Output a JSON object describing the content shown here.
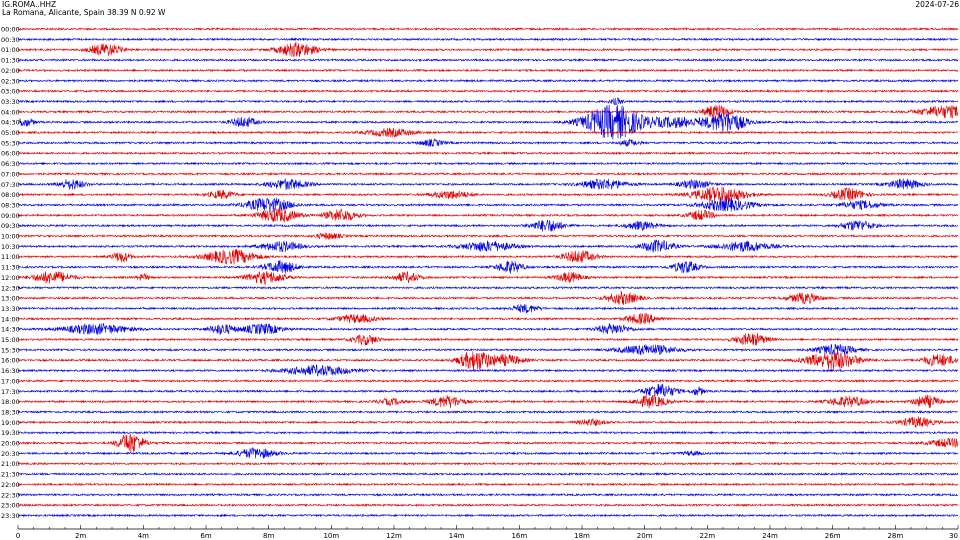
{
  "header": {
    "station": "IG.ROMA..HHZ",
    "location": "La Romana, Alicante, Spain  38.39 N 0.92 W",
    "date": "2024-07-26"
  },
  "chart_data": {
    "type": "line",
    "title": "",
    "xlabel": "",
    "ylabel": "",
    "x_unit": "minutes",
    "xlim": [
      0,
      30
    ],
    "x_ticks": [
      0,
      2,
      4,
      6,
      8,
      10,
      12,
      14,
      16,
      18,
      20,
      22,
      24,
      26,
      28,
      30
    ],
    "x_tick_labels": [
      "0",
      "2m",
      "4m",
      "6m",
      "8m",
      "10m",
      "12m",
      "14m",
      "16m",
      "18m",
      "20m",
      "22m",
      "24m",
      "26m",
      "28m",
      "30"
    ],
    "row_labels": [
      "00:00",
      "00:30",
      "01:00",
      "01:30",
      "02:00",
      "02:30",
      "03:00",
      "03:30",
      "04:00",
      "04:30",
      "05:00",
      "05:30",
      "06:00",
      "06:30",
      "07:00",
      "07:30",
      "08:00",
      "08:30",
      "09:00",
      "09:30",
      "10:00",
      "10:30",
      "11:00",
      "11:30",
      "12:00",
      "12:30",
      "13:00",
      "13:30",
      "14:00",
      "14:30",
      "15:00",
      "15:30",
      "16:00",
      "16:30",
      "17:00",
      "17:30",
      "18:00",
      "18:30",
      "19:00",
      "19:30",
      "20:00",
      "20:30",
      "21:00",
      "21:30",
      "22:00",
      "22:30",
      "23:00",
      "23:30"
    ],
    "trace_colors": [
      "#e00000",
      "#0000e0"
    ],
    "grid": false,
    "bursts": [
      {
        "row": 2,
        "t": 2.8,
        "amp": 6,
        "dur": 0.5
      },
      {
        "row": 2,
        "t": 8.9,
        "amp": 7,
        "dur": 0.6
      },
      {
        "row": 7,
        "t": 19.1,
        "amp": 3,
        "dur": 0.2
      },
      {
        "row": 8,
        "t": 22.3,
        "amp": 7,
        "dur": 0.4
      },
      {
        "row": 8,
        "t": 29.6,
        "amp": 6,
        "dur": 0.8
      },
      {
        "row": 9,
        "t": 0.2,
        "amp": 4,
        "dur": 0.3
      },
      {
        "row": 9,
        "t": 7.2,
        "amp": 5,
        "dur": 0.4
      },
      {
        "row": 9,
        "t": 19.0,
        "amp": 17,
        "dur": 0.9
      },
      {
        "row": 9,
        "t": 21.0,
        "amp": 5,
        "dur": 0.8
      },
      {
        "row": 9,
        "t": 22.6,
        "amp": 11,
        "dur": 0.6
      },
      {
        "row": 10,
        "t": 11.9,
        "amp": 4,
        "dur": 0.7
      },
      {
        "row": 11,
        "t": 13.2,
        "amp": 3,
        "dur": 0.4
      },
      {
        "row": 11,
        "t": 19.5,
        "amp": 3,
        "dur": 0.3
      },
      {
        "row": 15,
        "t": 1.7,
        "amp": 5,
        "dur": 0.4
      },
      {
        "row": 15,
        "t": 8.6,
        "amp": 5,
        "dur": 0.6
      },
      {
        "row": 15,
        "t": 18.7,
        "amp": 5,
        "dur": 0.7
      },
      {
        "row": 15,
        "t": 21.6,
        "amp": 4,
        "dur": 0.5
      },
      {
        "row": 15,
        "t": 28.3,
        "amp": 5,
        "dur": 0.5
      },
      {
        "row": 16,
        "t": 6.5,
        "amp": 4,
        "dur": 0.4
      },
      {
        "row": 16,
        "t": 13.8,
        "amp": 4,
        "dur": 0.6
      },
      {
        "row": 16,
        "t": 22.4,
        "amp": 8,
        "dur": 0.8
      },
      {
        "row": 16,
        "t": 26.5,
        "amp": 6,
        "dur": 0.5
      },
      {
        "row": 17,
        "t": 8.0,
        "amp": 7,
        "dur": 0.7
      },
      {
        "row": 17,
        "t": 22.6,
        "amp": 6,
        "dur": 0.8
      },
      {
        "row": 17,
        "t": 26.9,
        "amp": 4,
        "dur": 0.6
      },
      {
        "row": 18,
        "t": 8.3,
        "amp": 7,
        "dur": 0.6
      },
      {
        "row": 18,
        "t": 10.3,
        "amp": 6,
        "dur": 0.5
      },
      {
        "row": 18,
        "t": 21.8,
        "amp": 5,
        "dur": 0.4
      },
      {
        "row": 19,
        "t": 16.9,
        "amp": 6,
        "dur": 0.5
      },
      {
        "row": 19,
        "t": 19.9,
        "amp": 4,
        "dur": 0.5
      },
      {
        "row": 19,
        "t": 26.8,
        "amp": 5,
        "dur": 0.5
      },
      {
        "row": 20,
        "t": 9.9,
        "amp": 3,
        "dur": 0.4
      },
      {
        "row": 21,
        "t": 8.4,
        "amp": 5,
        "dur": 0.6
      },
      {
        "row": 21,
        "t": 15.0,
        "amp": 5,
        "dur": 0.8
      },
      {
        "row": 21,
        "t": 20.4,
        "amp": 6,
        "dur": 0.5
      },
      {
        "row": 21,
        "t": 23.2,
        "amp": 5,
        "dur": 0.8
      },
      {
        "row": 22,
        "t": 3.3,
        "amp": 5,
        "dur": 0.3
      },
      {
        "row": 22,
        "t": 6.8,
        "amp": 7,
        "dur": 0.8
      },
      {
        "row": 22,
        "t": 17.9,
        "amp": 6,
        "dur": 0.5
      },
      {
        "row": 23,
        "t": 8.4,
        "amp": 6,
        "dur": 0.5
      },
      {
        "row": 23,
        "t": 15.7,
        "amp": 6,
        "dur": 0.4
      },
      {
        "row": 23,
        "t": 21.3,
        "amp": 6,
        "dur": 0.4
      },
      {
        "row": 24,
        "t": 1.1,
        "amp": 6,
        "dur": 0.6
      },
      {
        "row": 24,
        "t": 4.0,
        "amp": 3,
        "dur": 0.2
      },
      {
        "row": 24,
        "t": 7.9,
        "amp": 6,
        "dur": 0.6
      },
      {
        "row": 24,
        "t": 12.4,
        "amp": 5,
        "dur": 0.4
      },
      {
        "row": 24,
        "t": 17.6,
        "amp": 5,
        "dur": 0.4
      },
      {
        "row": 26,
        "t": 19.3,
        "amp": 6,
        "dur": 0.5
      },
      {
        "row": 26,
        "t": 25.1,
        "amp": 5,
        "dur": 0.5
      },
      {
        "row": 27,
        "t": 16.2,
        "amp": 4,
        "dur": 0.4
      },
      {
        "row": 28,
        "t": 10.8,
        "amp": 4,
        "dur": 0.6
      },
      {
        "row": 28,
        "t": 19.9,
        "amp": 5,
        "dur": 0.5
      },
      {
        "row": 29,
        "t": 2.5,
        "amp": 5,
        "dur": 1.0
      },
      {
        "row": 29,
        "t": 6.5,
        "amp": 5,
        "dur": 0.4
      },
      {
        "row": 29,
        "t": 7.8,
        "amp": 5,
        "dur": 0.6
      },
      {
        "row": 29,
        "t": 19.0,
        "amp": 5,
        "dur": 0.5
      },
      {
        "row": 30,
        "t": 11.1,
        "amp": 5,
        "dur": 0.4
      },
      {
        "row": 30,
        "t": 23.4,
        "amp": 6,
        "dur": 0.5
      },
      {
        "row": 31,
        "t": 20.1,
        "amp": 5,
        "dur": 0.9
      },
      {
        "row": 31,
        "t": 26.1,
        "amp": 5,
        "dur": 0.6
      },
      {
        "row": 32,
        "t": 14.6,
        "amp": 10,
        "dur": 0.5
      },
      {
        "row": 32,
        "t": 15.6,
        "amp": 5,
        "dur": 0.5
      },
      {
        "row": 32,
        "t": 26.0,
        "amp": 9,
        "dur": 0.8
      },
      {
        "row": 32,
        "t": 29.4,
        "amp": 6,
        "dur": 0.5
      },
      {
        "row": 33,
        "t": 9.6,
        "amp": 5,
        "dur": 1.0
      },
      {
        "row": 35,
        "t": 20.5,
        "amp": 7,
        "dur": 0.5
      },
      {
        "row": 35,
        "t": 21.7,
        "amp": 4,
        "dur": 0.2
      },
      {
        "row": 36,
        "t": 11.9,
        "amp": 3,
        "dur": 0.4
      },
      {
        "row": 36,
        "t": 13.7,
        "amp": 6,
        "dur": 0.5
      },
      {
        "row": 36,
        "t": 20.2,
        "amp": 6,
        "dur": 0.5
      },
      {
        "row": 36,
        "t": 26.5,
        "amp": 5,
        "dur": 0.6
      },
      {
        "row": 36,
        "t": 29.0,
        "amp": 6,
        "dur": 0.4
      },
      {
        "row": 38,
        "t": 18.3,
        "amp": 3,
        "dur": 0.4
      },
      {
        "row": 38,
        "t": 28.7,
        "amp": 5,
        "dur": 0.5
      },
      {
        "row": 40,
        "t": 3.6,
        "amp": 10,
        "dur": 0.4
      },
      {
        "row": 40,
        "t": 29.7,
        "amp": 4,
        "dur": 0.6
      },
      {
        "row": 41,
        "t": 7.6,
        "amp": 5,
        "dur": 0.6
      },
      {
        "row": 41,
        "t": 21.5,
        "amp": 2,
        "dur": 0.3
      }
    ]
  }
}
